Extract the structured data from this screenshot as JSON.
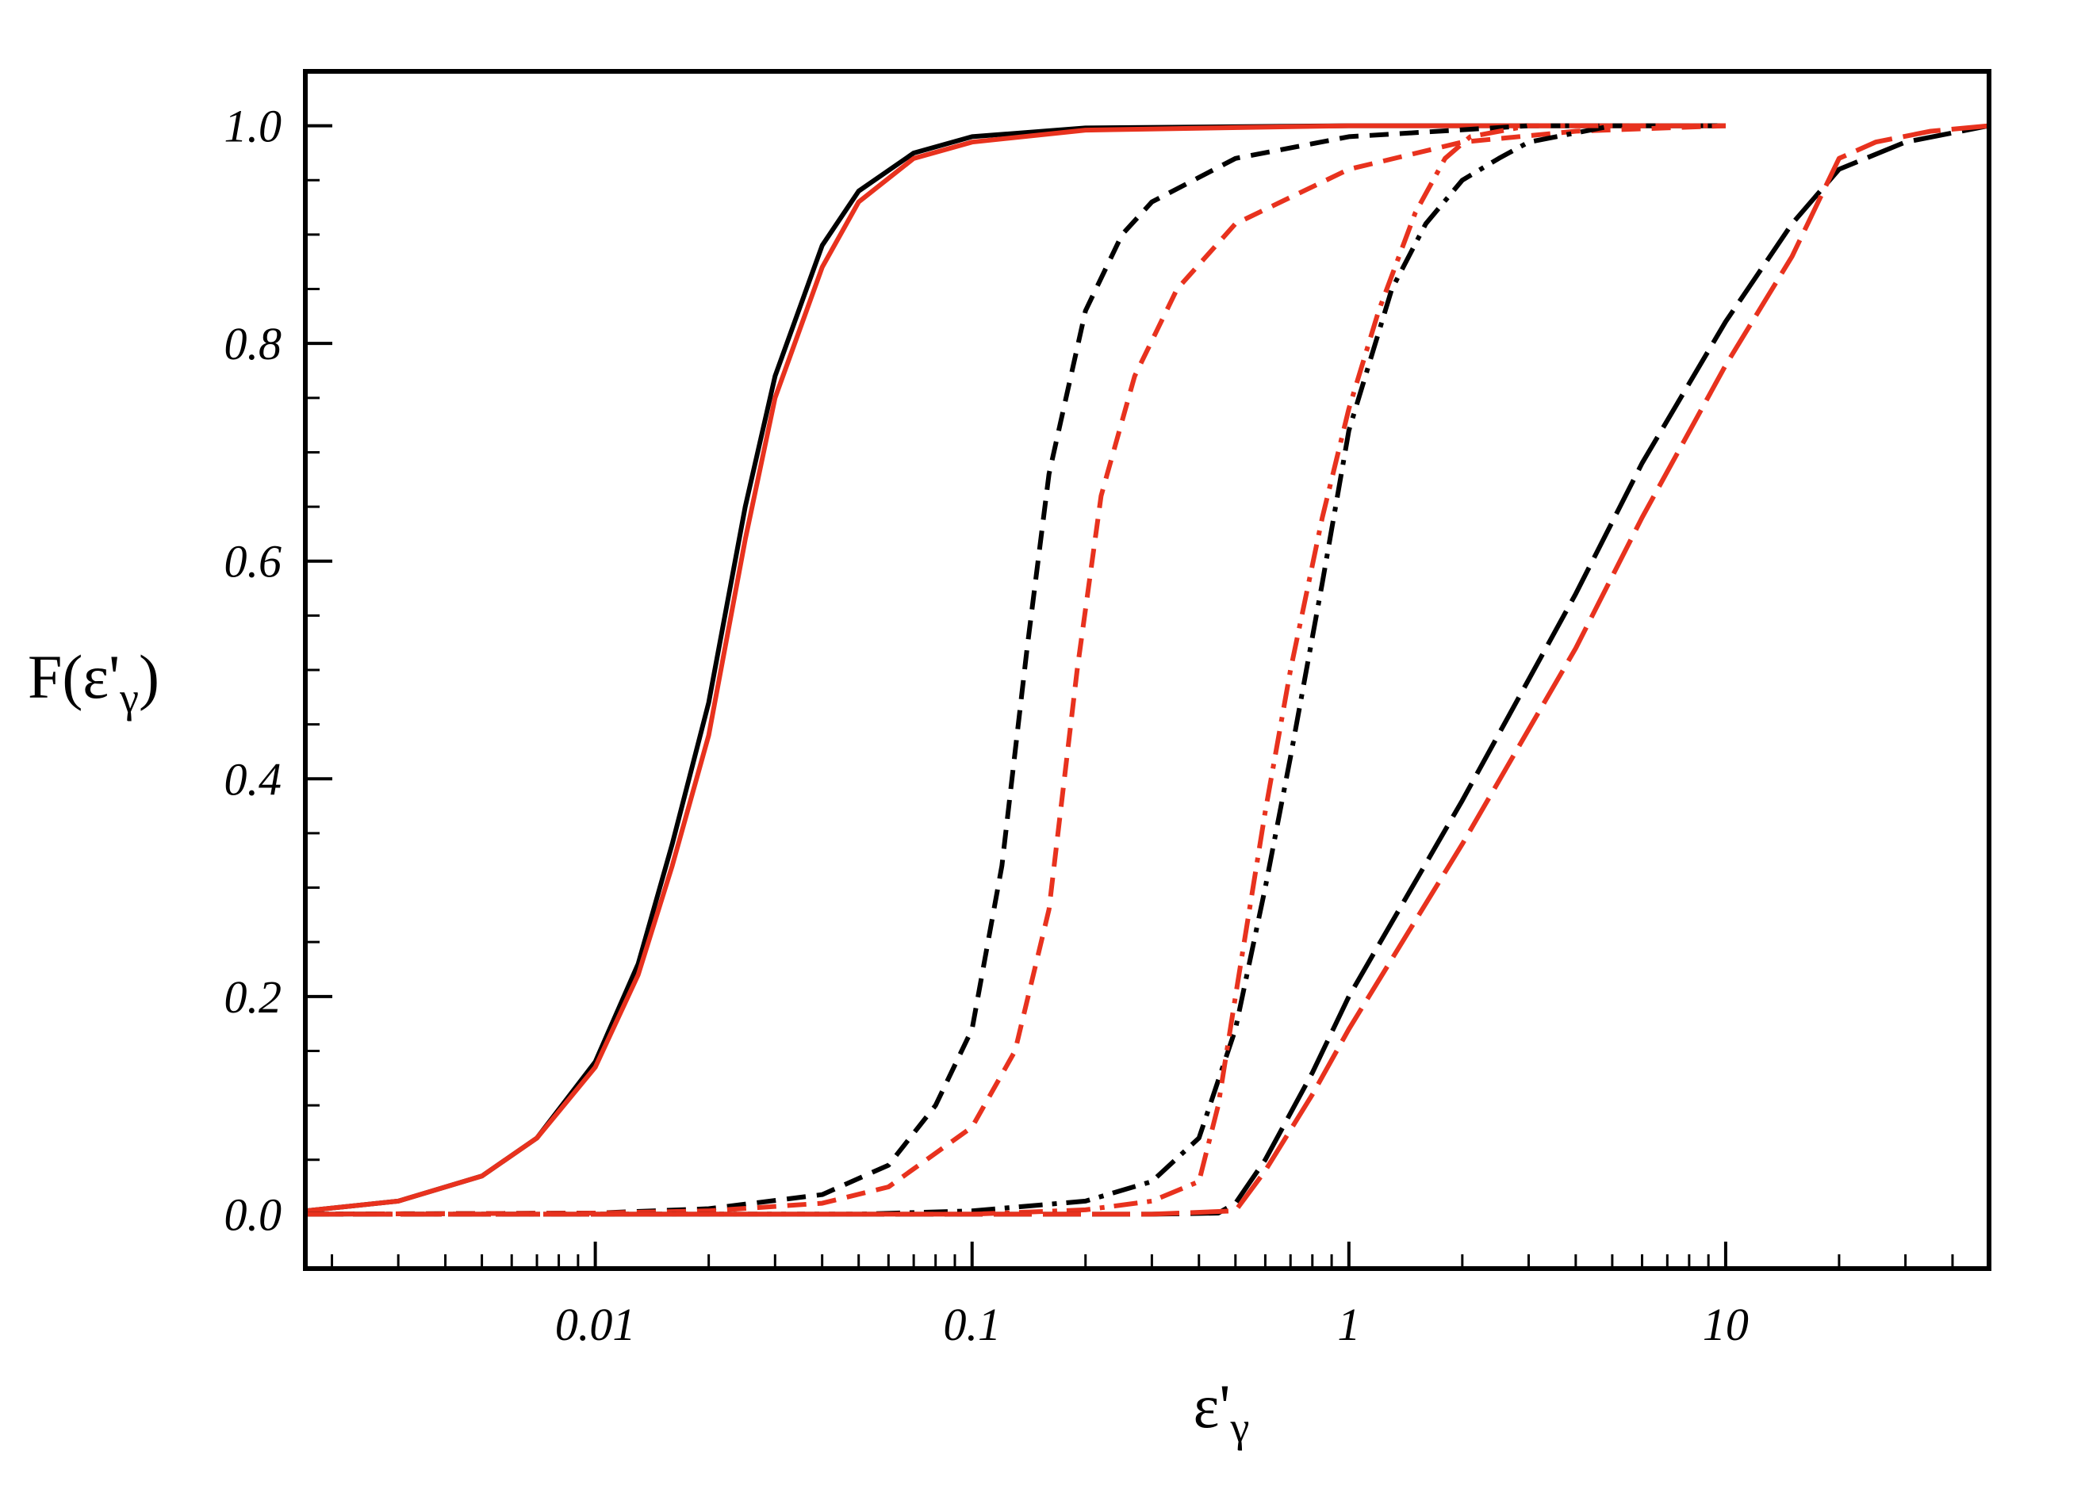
{
  "chart_data": {
    "type": "line",
    "xlabel": {
      "main": "ε'",
      "sub": "γ"
    },
    "ylabel": {
      "prefix": "F(ε'",
      "sub": "γ",
      "suffix": ")"
    },
    "xscale": "log",
    "xlim": [
      0.0017,
      50
    ],
    "ylim": [
      -0.05,
      1.05
    ],
    "xticks": [
      {
        "value": 0.01,
        "label": "0.01"
      },
      {
        "value": 0.1,
        "label": "0.1"
      },
      {
        "value": 1,
        "label": "1"
      },
      {
        "value": 10,
        "label": "10"
      }
    ],
    "yticks": [
      {
        "value": 0.0,
        "label": "0.0"
      },
      {
        "value": 0.2,
        "label": "0.2"
      },
      {
        "value": 0.4,
        "label": "0.4"
      },
      {
        "value": 0.6,
        "label": "0.6"
      },
      {
        "value": 0.8,
        "label": "0.8"
      },
      {
        "value": 1.0,
        "label": "1.0"
      }
    ],
    "legend": "none",
    "grid": false,
    "series": [
      {
        "color": "#000000",
        "dash": "solid",
        "points": [
          [
            0.0017,
            0.003
          ],
          [
            0.003,
            0.012
          ],
          [
            0.005,
            0.035
          ],
          [
            0.007,
            0.07
          ],
          [
            0.01,
            0.14
          ],
          [
            0.013,
            0.23
          ],
          [
            0.016,
            0.34
          ],
          [
            0.02,
            0.47
          ],
          [
            0.025,
            0.65
          ],
          [
            0.03,
            0.77
          ],
          [
            0.04,
            0.89
          ],
          [
            0.05,
            0.94
          ],
          [
            0.07,
            0.975
          ],
          [
            0.1,
            0.99
          ],
          [
            0.2,
            0.998
          ],
          [
            1,
            1.0
          ],
          [
            10,
            1.0
          ]
        ]
      },
      {
        "color": "#e8321e",
        "dash": "solid",
        "points": [
          [
            0.0017,
            0.003
          ],
          [
            0.003,
            0.012
          ],
          [
            0.005,
            0.035
          ],
          [
            0.007,
            0.07
          ],
          [
            0.01,
            0.135
          ],
          [
            0.013,
            0.22
          ],
          [
            0.016,
            0.32
          ],
          [
            0.02,
            0.44
          ],
          [
            0.025,
            0.62
          ],
          [
            0.03,
            0.75
          ],
          [
            0.04,
            0.87
          ],
          [
            0.05,
            0.93
          ],
          [
            0.07,
            0.97
          ],
          [
            0.1,
            0.985
          ],
          [
            0.2,
            0.996
          ],
          [
            1,
            1.0
          ],
          [
            10,
            1.0
          ]
        ]
      },
      {
        "color": "#000000",
        "dash": "dash",
        "points": [
          [
            0.0017,
            0.0
          ],
          [
            0.01,
            0.001
          ],
          [
            0.02,
            0.005
          ],
          [
            0.04,
            0.018
          ],
          [
            0.06,
            0.045
          ],
          [
            0.08,
            0.1
          ],
          [
            0.1,
            0.17
          ],
          [
            0.12,
            0.32
          ],
          [
            0.14,
            0.52
          ],
          [
            0.16,
            0.68
          ],
          [
            0.2,
            0.83
          ],
          [
            0.25,
            0.9
          ],
          [
            0.3,
            0.93
          ],
          [
            0.5,
            0.97
          ],
          [
            1,
            0.99
          ],
          [
            3,
            1.0
          ],
          [
            10,
            1.0
          ]
        ]
      },
      {
        "color": "#e8321e",
        "dash": "dash",
        "points": [
          [
            0.0017,
            0.0
          ],
          [
            0.01,
            0.001
          ],
          [
            0.02,
            0.003
          ],
          [
            0.04,
            0.01
          ],
          [
            0.06,
            0.025
          ],
          [
            0.1,
            0.08
          ],
          [
            0.13,
            0.15
          ],
          [
            0.16,
            0.28
          ],
          [
            0.19,
            0.5
          ],
          [
            0.22,
            0.66
          ],
          [
            0.27,
            0.77
          ],
          [
            0.35,
            0.85
          ],
          [
            0.5,
            0.91
          ],
          [
            1,
            0.96
          ],
          [
            2,
            0.985
          ],
          [
            4,
            0.995
          ],
          [
            10,
            1.0
          ]
        ]
      },
      {
        "color": "#000000",
        "dash": "dashdot",
        "points": [
          [
            0.0017,
            0.0
          ],
          [
            0.05,
            0.0
          ],
          [
            0.1,
            0.003
          ],
          [
            0.2,
            0.012
          ],
          [
            0.3,
            0.03
          ],
          [
            0.4,
            0.07
          ],
          [
            0.5,
            0.17
          ],
          [
            0.6,
            0.3
          ],
          [
            0.7,
            0.42
          ],
          [
            0.85,
            0.58
          ],
          [
            1.0,
            0.72
          ],
          [
            1.3,
            0.85
          ],
          [
            1.6,
            0.91
          ],
          [
            2,
            0.95
          ],
          [
            2.5,
            0.97
          ],
          [
            3,
            0.985
          ],
          [
            5,
            1.0
          ]
        ]
      },
      {
        "color": "#e8321e",
        "dash": "dashdot",
        "points": [
          [
            0.0017,
            0.0
          ],
          [
            0.1,
            0.0
          ],
          [
            0.2,
            0.004
          ],
          [
            0.3,
            0.012
          ],
          [
            0.4,
            0.03
          ],
          [
            0.45,
            0.1
          ],
          [
            0.5,
            0.2
          ],
          [
            0.6,
            0.37
          ],
          [
            0.7,
            0.5
          ],
          [
            0.85,
            0.64
          ],
          [
            1.0,
            0.74
          ],
          [
            1.2,
            0.83
          ],
          [
            1.5,
            0.92
          ],
          [
            1.8,
            0.97
          ],
          [
            2.1,
            0.99
          ],
          [
            3,
            1.0
          ],
          [
            10,
            1.0
          ]
        ]
      },
      {
        "color": "#000000",
        "dash": "longdash",
        "points": [
          [
            0.0017,
            0.0
          ],
          [
            0.3,
            0.0
          ],
          [
            0.45,
            0.001
          ],
          [
            0.5,
            0.01
          ],
          [
            0.6,
            0.05
          ],
          [
            0.8,
            0.13
          ],
          [
            1,
            0.2
          ],
          [
            2,
            0.38
          ],
          [
            4,
            0.57
          ],
          [
            6,
            0.69
          ],
          [
            10,
            0.82
          ],
          [
            15,
            0.91
          ],
          [
            20,
            0.96
          ],
          [
            30,
            0.985
          ],
          [
            50,
            1.0
          ]
        ]
      },
      {
        "color": "#e8321e",
        "dash": "longdash",
        "points": [
          [
            0.0017,
            0.0
          ],
          [
            0.3,
            0.0
          ],
          [
            0.5,
            0.003
          ],
          [
            0.6,
            0.04
          ],
          [
            0.8,
            0.11
          ],
          [
            1,
            0.17
          ],
          [
            2,
            0.34
          ],
          [
            4,
            0.52
          ],
          [
            6,
            0.64
          ],
          [
            10,
            0.78
          ],
          [
            15,
            0.88
          ],
          [
            20,
            0.97
          ],
          [
            25,
            0.985
          ],
          [
            35,
            0.995
          ],
          [
            50,
            1.0
          ]
        ]
      }
    ]
  }
}
